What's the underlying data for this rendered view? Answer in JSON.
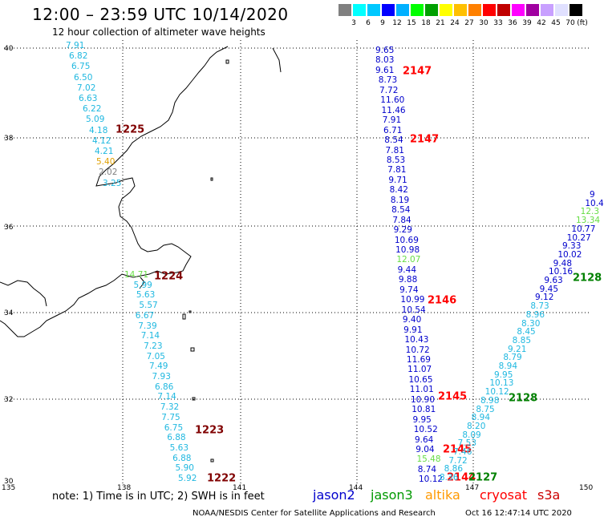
{
  "title": "12:00 – 23:59 UTC 10/14/2020",
  "subtitle": "12 hour collection of altimeter wave heights",
  "legend": {
    "unit": "(ft)",
    "colors": [
      "#808080",
      "#00ffff",
      "#00c8ff",
      "#0000ff",
      "#00b0ff",
      "#00ff00",
      "#00a000",
      "#ffff00",
      "#ffc000",
      "#ff8000",
      "#ff0000",
      "#c00000",
      "#ff00ff",
      "#a000a0",
      "#c8a0ff",
      "#e0e0ff",
      "#000000"
    ],
    "labels": [
      "3",
      "6",
      "9",
      "12",
      "15",
      "18",
      "21",
      "24",
      "27",
      "30",
      "33",
      "36",
      "39",
      "42",
      "45",
      "70"
    ]
  },
  "lat_labels": [
    "40",
    "38",
    "36",
    "34",
    "32",
    "30"
  ],
  "lon_labels": [
    "135",
    "138",
    "141",
    "144",
    "147",
    "150"
  ],
  "tracks": {
    "west": {
      "color_main": "#20b8e0",
      "values": [
        "7.91",
        "6.82",
        "6.75",
        "6.50",
        "7.02",
        "6.63",
        "6.22",
        "5.09",
        "4.18",
        "4.12",
        "4.21",
        "5.40",
        "2.02",
        "3.25"
      ],
      "time": "1225"
    },
    "middle": {
      "values": [
        "14.71",
        "5.99",
        "5.63",
        "5.57",
        "6.67",
        "7.39",
        "7.14",
        "7.23",
        "7.05",
        "7.49",
        "7.93",
        "6.86",
        "7.14",
        "7.32",
        "7.75",
        "6.75",
        "6.88",
        "5.63",
        "6.88",
        "5.90",
        "5.92"
      ],
      "times": [
        "1224",
        "1223",
        "1222"
      ]
    },
    "north": {
      "values": [
        "9.65",
        "8.03",
        "9.61",
        "8.73",
        "7.72",
        "11.60",
        "11.46",
        "7.91",
        "6.71",
        "8.54",
        "7.81",
        "8.53",
        "7.81",
        "9.71",
        "8.42",
        "8.19",
        "8.54",
        "7.84",
        "9.29",
        "10.69",
        "10.98",
        "12.07",
        "9.44",
        "9.88",
        "9.74",
        "10.99",
        "10.54",
        "9.40",
        "9.91",
        "10.43",
        "10.72",
        "11.69",
        "11.07",
        "10.65",
        "11.01",
        "10.90",
        "10.81",
        "9.95",
        "10.52",
        "9.64",
        "9.04",
        "15.48",
        "8.74",
        "10.12"
      ],
      "times": [
        "2147",
        "2147",
        "2146",
        "2145",
        "2145",
        "2144"
      ]
    },
    "east": {
      "values": [
        "9",
        "10.4",
        "12.3",
        "13.34",
        "10.77",
        "10.27",
        "9.33",
        "10.02",
        "9.48",
        "10.16",
        "9.63",
        "9.45",
        "9.12",
        "8.73",
        "8.96",
        "8.30",
        "8.45",
        "8.85",
        "9.21",
        "8.79",
        "8.94",
        "9.95",
        "10.13",
        "10.12",
        "8.98",
        "8.75",
        "8.94",
        "8.20",
        "8.09",
        "7.53",
        "7.46",
        "7.72",
        "8.86",
        "8.36"
      ],
      "times": [
        "2128",
        "2128",
        "2127"
      ]
    }
  },
  "note": "note:  1) Time is in UTC;  2) SWH is in feet",
  "satellites": [
    {
      "name": "jason2",
      "color": "#0000cc"
    },
    {
      "name": "jason3",
      "color": "#009900"
    },
    {
      "name": "altika",
      "color": "#ff9900"
    },
    {
      "name": "cryosat",
      "color": "#ff0000"
    },
    {
      "name": "s3a",
      "color": "#cc0000"
    }
  ],
  "credit": "NOAA/NESDIS Center for Satellite Applications and Research",
  "timestamp": "Oct 16 12:47:14 UTC 2020"
}
